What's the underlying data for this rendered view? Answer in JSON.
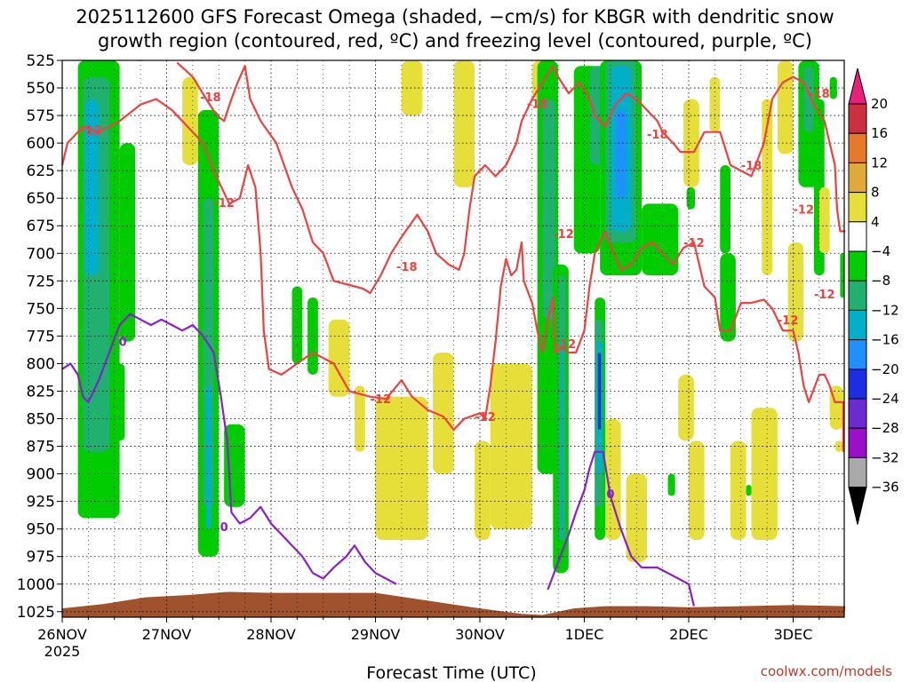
{
  "title_line1": "2025112600 GFS Forecast Omega (shaded, −cm/s) for KBGR with dendritic snow",
  "title_line2": "growth region (contoured, red, ºC) and freezing level (contoured, purple, ºC)",
  "credit": "coolwx.com/models",
  "chart_data": {
    "type": "heatmap",
    "xlabel": "Forecast Time (UTC)",
    "ylabel": "",
    "x_ticks": [
      {
        "day": 0,
        "label": "26NOV",
        "sub": "2025"
      },
      {
        "day": 1,
        "label": "27NOV",
        "sub": ""
      },
      {
        "day": 2,
        "label": "28NOV",
        "sub": ""
      },
      {
        "day": 3,
        "label": "29NOV",
        "sub": ""
      },
      {
        "day": 4,
        "label": "30NOV",
        "sub": ""
      },
      {
        "day": 5,
        "label": "1DEC",
        "sub": ""
      },
      {
        "day": 6,
        "label": "2DEC",
        "sub": ""
      },
      {
        "day": 7,
        "label": "3DEC",
        "sub": ""
      }
    ],
    "xlim_days": [
      0,
      7.5
    ],
    "ylim_hpa": [
      1030,
      525
    ],
    "y_ticks": [
      525,
      550,
      575,
      600,
      625,
      650,
      675,
      700,
      725,
      750,
      775,
      800,
      825,
      850,
      875,
      900,
      925,
      950,
      975,
      1000,
      1025
    ],
    "grid": "dotted",
    "colorbar": {
      "labels": [
        "20",
        "16",
        "12",
        "8",
        "4",
        "−4",
        "−8",
        "−12",
        "−16",
        "−20",
        "−24",
        "−28",
        "−32",
        "−36"
      ],
      "colors": [
        "#cc3040",
        "#e77a2a",
        "#e1a93a",
        "#e6df3a",
        "#ffffff",
        "#00cc00",
        "#20b070",
        "#00b0c8",
        "#1e90ff",
        "#1c2fe0",
        "#6b2bd0",
        "#9c0fc8",
        "#a9a9a9"
      ],
      "top_arrow": "#e8207a",
      "bottom_arrow": "#000000"
    },
    "contour_labels": [
      {
        "text": "-12",
        "color": "red",
        "day": 0.28,
        "p": 588
      },
      {
        "text": "-18",
        "color": "red",
        "day": 1.42,
        "p": 558
      },
      {
        "text": "-12",
        "color": "red",
        "day": 1.55,
        "p": 654
      },
      {
        "text": "-18",
        "color": "red",
        "day": 3.3,
        "p": 712
      },
      {
        "text": "-12",
        "color": "red",
        "day": 3.05,
        "p": 832
      },
      {
        "text": "-12",
        "color": "red",
        "day": 4.05,
        "p": 848
      },
      {
        "text": "-18",
        "color": "red",
        "day": 4.55,
        "p": 564
      },
      {
        "text": "-12",
        "color": "red",
        "day": 4.8,
        "p": 682
      },
      {
        "text": "-12",
        "color": "red",
        "day": 4.82,
        "p": 782
      },
      {
        "text": "-18",
        "color": "red",
        "day": 5.7,
        "p": 592
      },
      {
        "text": "-18",
        "color": "red",
        "day": 6.6,
        "p": 620
      },
      {
        "text": "-12",
        "color": "red",
        "day": 6.05,
        "p": 690
      },
      {
        "text": "-18",
        "color": "red",
        "day": 7.25,
        "p": 555
      },
      {
        "text": "-12",
        "color": "red",
        "day": 7.1,
        "p": 660
      },
      {
        "text": "-12",
        "color": "red",
        "day": 6.95,
        "p": 760
      },
      {
        "text": "-12",
        "color": "red",
        "day": 7.3,
        "p": 737
      },
      {
        "text": "0",
        "color": "purple",
        "day": 0.58,
        "p": 780
      },
      {
        "text": "0",
        "color": "purple",
        "day": 1.55,
        "p": 948
      },
      {
        "text": "0",
        "color": "purple",
        "day": 5.25,
        "p": 918
      }
    ],
    "dgz_outline_red": [
      [
        0.0,
        620
      ],
      [
        0.05,
        600
      ],
      [
        0.2,
        585
      ],
      [
        0.35,
        590
      ],
      [
        0.55,
        580
      ],
      [
        0.75,
        565
      ],
      [
        0.9,
        560
      ],
      [
        1.05,
        570
      ],
      [
        1.15,
        580
      ],
      [
        1.25,
        590
      ],
      [
        1.35,
        600
      ],
      [
        1.45,
        625
      ],
      [
        1.55,
        645
      ],
      [
        1.6,
        655
      ],
      [
        1.7,
        650
      ],
      [
        1.78,
        620
      ],
      [
        1.85,
        640
      ],
      [
        1.9,
        700
      ],
      [
        1.93,
        770
      ],
      [
        1.98,
        805
      ],
      [
        2.1,
        810
      ],
      [
        2.25,
        800
      ],
      [
        2.4,
        790
      ],
      [
        2.6,
        800
      ],
      [
        2.75,
        825
      ],
      [
        2.95,
        830
      ],
      [
        3.1,
        832
      ],
      [
        3.25,
        815
      ],
      [
        3.35,
        830
      ],
      [
        3.5,
        842
      ],
      [
        3.65,
        848
      ],
      [
        3.75,
        860
      ],
      [
        3.85,
        850
      ],
      [
        4.0,
        845
      ],
      [
        4.05,
        850
      ],
      [
        4.1,
        820
      ],
      [
        4.15,
        780
      ],
      [
        4.2,
        730
      ],
      [
        4.25,
        705
      ],
      [
        4.3,
        720
      ],
      [
        4.35,
        715
      ],
      [
        4.4,
        690
      ],
      [
        4.42,
        725
      ],
      [
        4.5,
        745
      ],
      [
        4.55,
        770
      ],
      [
        4.6,
        790
      ],
      [
        4.65,
        760
      ],
      [
        4.7,
        740
      ],
      [
        4.72,
        790
      ],
      [
        4.78,
        785
      ],
      [
        4.85,
        790
      ],
      [
        4.92,
        790
      ],
      [
        5.0,
        770
      ],
      [
        5.05,
        730
      ],
      [
        5.1,
        700
      ],
      [
        5.15,
        690
      ],
      [
        5.2,
        680
      ],
      [
        5.28,
        700
      ],
      [
        5.35,
        715
      ],
      [
        5.45,
        710
      ],
      [
        5.55,
        695
      ],
      [
        5.65,
        690
      ],
      [
        5.75,
        700
      ],
      [
        5.85,
        710
      ],
      [
        5.95,
        695
      ],
      [
        6.05,
        690
      ],
      [
        6.15,
        730
      ],
      [
        6.25,
        740
      ],
      [
        6.3,
        770
      ],
      [
        6.4,
        770
      ],
      [
        6.5,
        745
      ],
      [
        6.6,
        745
      ],
      [
        6.72,
        742
      ],
      [
        6.8,
        750
      ],
      [
        6.9,
        770
      ],
      [
        7.0,
        770
      ],
      [
        7.05,
        790
      ],
      [
        7.1,
        820
      ],
      [
        7.15,
        835
      ],
      [
        7.25,
        810
      ],
      [
        7.3,
        810
      ],
      [
        7.35,
        820
      ],
      [
        7.4,
        835
      ],
      [
        7.48,
        835
      ],
      [
        7.48,
        880
      ]
    ],
    "dgz_outline_red_upper": [
      [
        1.1,
        527
      ],
      [
        1.25,
        540
      ],
      [
        1.38,
        560
      ],
      [
        1.48,
        575
      ],
      [
        1.55,
        580
      ],
      [
        1.62,
        560
      ],
      [
        1.68,
        545
      ],
      [
        1.75,
        530
      ],
      [
        1.8,
        560
      ],
      [
        1.9,
        580
      ],
      [
        2.05,
        600
      ],
      [
        2.2,
        640
      ],
      [
        2.3,
        660
      ],
      [
        2.4,
        690
      ],
      [
        2.5,
        700
      ],
      [
        2.6,
        725
      ],
      [
        2.72,
        728
      ],
      [
        2.88,
        732
      ],
      [
        2.95,
        736
      ],
      [
        3.05,
        720
      ],
      [
        3.15,
        700
      ],
      [
        3.25,
        685
      ],
      [
        3.4,
        665
      ],
      [
        3.5,
        680
      ],
      [
        3.58,
        700
      ],
      [
        3.7,
        710
      ],
      [
        3.8,
        715
      ],
      [
        3.85,
        700
      ],
      [
        3.9,
        660
      ],
      [
        3.95,
        630
      ],
      [
        4.05,
        620
      ],
      [
        4.15,
        630
      ],
      [
        4.25,
        620
      ],
      [
        4.35,
        600
      ],
      [
        4.4,
        580
      ],
      [
        4.5,
        560
      ],
      [
        4.6,
        545
      ],
      [
        4.7,
        530
      ],
      [
        4.75,
        540
      ],
      [
        4.85,
        555
      ],
      [
        4.95,
        545
      ],
      [
        5.05,
        560
      ],
      [
        5.1,
        575
      ],
      [
        5.2,
        585
      ],
      [
        5.3,
        565
      ],
      [
        5.4,
        555
      ],
      [
        5.5,
        560
      ],
      [
        5.6,
        570
      ],
      [
        5.7,
        580
      ],
      [
        5.75,
        590
      ],
      [
        5.85,
        600
      ],
      [
        5.92,
        608
      ],
      [
        6.05,
        608
      ],
      [
        6.15,
        590
      ],
      [
        6.3,
        590
      ],
      [
        6.4,
        620
      ],
      [
        6.5,
        625
      ],
      [
        6.6,
        630
      ],
      [
        6.72,
        600
      ],
      [
        6.8,
        560
      ],
      [
        6.9,
        545
      ],
      [
        7.0,
        540
      ],
      [
        7.1,
        545
      ],
      [
        7.2,
        565
      ],
      [
        7.3,
        580
      ],
      [
        7.35,
        600
      ],
      [
        7.4,
        620
      ],
      [
        7.42,
        660
      ],
      [
        7.45,
        680
      ],
      [
        7.5,
        680
      ]
    ],
    "freezing_outline_purple": [
      [
        0.0,
        805
      ],
      [
        0.08,
        800
      ],
      [
        0.15,
        810
      ],
      [
        0.2,
        830
      ],
      [
        0.25,
        835
      ],
      [
        0.35,
        815
      ],
      [
        0.45,
        790
      ],
      [
        0.55,
        765
      ],
      [
        0.65,
        755
      ],
      [
        0.75,
        760
      ],
      [
        0.85,
        765
      ],
      [
        0.95,
        760
      ],
      [
        1.05,
        765
      ],
      [
        1.15,
        770
      ],
      [
        1.25,
        765
      ],
      [
        1.35,
        775
      ],
      [
        1.45,
        790
      ],
      [
        1.52,
        830
      ],
      [
        1.58,
        870
      ],
      [
        1.6,
        900
      ],
      [
        1.62,
        935
      ],
      [
        1.7,
        945
      ],
      [
        1.8,
        940
      ],
      [
        1.9,
        930
      ],
      [
        2.0,
        945
      ],
      [
        2.1,
        955
      ],
      [
        2.2,
        965
      ],
      [
        2.3,
        975
      ],
      [
        2.4,
        990
      ],
      [
        2.5,
        995
      ],
      [
        2.6,
        985
      ],
      [
        2.72,
        975
      ],
      [
        2.8,
        965
      ],
      [
        2.9,
        980
      ],
      [
        3.0,
        990
      ],
      [
        3.1,
        995
      ],
      [
        3.2,
        1000
      ]
    ],
    "freezing_outline_purple2": [
      [
        4.65,
        1005
      ],
      [
        4.75,
        980
      ],
      [
        4.85,
        955
      ],
      [
        4.92,
        935
      ],
      [
        5.0,
        915
      ],
      [
        5.05,
        895
      ],
      [
        5.1,
        880
      ],
      [
        5.18,
        880
      ],
      [
        5.25,
        920
      ],
      [
        5.35,
        950
      ],
      [
        5.45,
        975
      ],
      [
        5.55,
        985
      ],
      [
        5.7,
        985
      ],
      [
        5.8,
        990
      ],
      [
        5.9,
        995
      ],
      [
        6.0,
        1000
      ],
      [
        6.05,
        1020
      ]
    ]
  }
}
